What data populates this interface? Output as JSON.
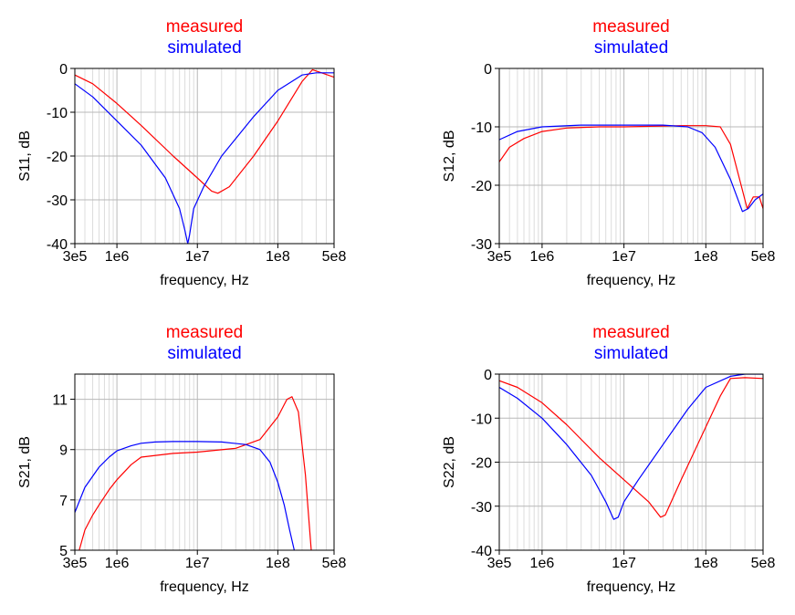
{
  "chart_data": [
    {
      "type": "line",
      "xscale": "log",
      "xlim": [
        300000,
        500000000
      ],
      "ylim": [
        -40,
        0
      ],
      "xticks": [
        300000,
        1000000,
        10000000,
        100000000,
        500000000
      ],
      "xtick_labels": [
        "3e5",
        "1e6",
        "1e7",
        "1e8",
        "5e8"
      ],
      "yticks": [
        -40,
        -30,
        -20,
        -10,
        0
      ],
      "ytick_labels": [
        "-40",
        "-30",
        "-20",
        "-10",
        "0"
      ],
      "xlabel": "frequency, Hz",
      "ylabel": "S11, dB",
      "grid": true,
      "legend": "top",
      "series": [
        {
          "name": "measured",
          "color": "#ff0000",
          "x": [
            300000,
            500000,
            1000000,
            2000000,
            5000000,
            10000000,
            15000000,
            18000000,
            25000000,
            50000000,
            100000000,
            200000000,
            270000000,
            350000000,
            500000000
          ],
          "y": [
            -1.5,
            -3.5,
            -8,
            -13,
            -20,
            -25,
            -28,
            -28.5,
            -27,
            -20,
            -12,
            -3,
            -0.3,
            -1,
            -2
          ]
        },
        {
          "name": "simulated",
          "color": "#0000ff",
          "x": [
            300000,
            500000,
            1000000,
            2000000,
            4000000,
            6000000,
            7000000,
            7600000,
            8000000,
            9000000,
            12000000,
            20000000,
            50000000,
            100000000,
            200000000,
            300000000,
            500000000
          ],
          "y": [
            -3.5,
            -6.5,
            -12,
            -17.5,
            -25,
            -32,
            -37,
            -40,
            -38,
            -32,
            -27,
            -20,
            -11,
            -5,
            -1.5,
            -1,
            -1
          ]
        }
      ]
    },
    {
      "type": "line",
      "xscale": "log",
      "xlim": [
        300000,
        500000000
      ],
      "ylim": [
        -30,
        0
      ],
      "xticks": [
        300000,
        1000000,
        10000000,
        100000000,
        500000000
      ],
      "xtick_labels": [
        "3e5",
        "1e6",
        "1e7",
        "1e8",
        "5e8"
      ],
      "yticks": [
        -30,
        -20,
        -10,
        0
      ],
      "ytick_labels": [
        "-30",
        "-20",
        "-10",
        "0"
      ],
      "xlabel": "frequency, Hz",
      "ylabel": "S12, dB",
      "grid": true,
      "legend": "top",
      "series": [
        {
          "name": "measured",
          "color": "#ff0000",
          "x": [
            300000,
            400000,
            600000,
            1000000,
            2000000,
            5000000,
            10000000,
            50000000,
            100000000,
            150000000,
            200000000,
            270000000,
            320000000,
            380000000,
            450000000,
            500000000
          ],
          "y": [
            -16,
            -13.5,
            -12,
            -10.8,
            -10.2,
            -10,
            -10,
            -9.8,
            -9.8,
            -10,
            -13,
            -20,
            -24,
            -22,
            -22,
            -24
          ]
        },
        {
          "name": "simulated",
          "color": "#0000ff",
          "x": [
            300000,
            500000,
            1000000,
            3000000,
            10000000,
            30000000,
            60000000,
            90000000,
            130000000,
            200000000,
            280000000,
            330000000,
            400000000,
            500000000
          ],
          "y": [
            -12.2,
            -10.8,
            -10,
            -9.7,
            -9.7,
            -9.7,
            -10,
            -11,
            -13.5,
            -19,
            -24.5,
            -24,
            -22.5,
            -21.5
          ]
        }
      ]
    },
    {
      "type": "line",
      "xscale": "log",
      "xlim": [
        300000,
        500000000
      ],
      "ylim": [
        5,
        12
      ],
      "xticks": [
        300000,
        1000000,
        10000000,
        100000000,
        500000000
      ],
      "xtick_labels": [
        "3e5",
        "1e6",
        "1e7",
        "1e8",
        "5e8"
      ],
      "yticks": [
        5,
        7,
        9,
        11
      ],
      "ytick_labels": [
        "5",
        "7",
        "9",
        "11"
      ],
      "xlabel": "frequency, Hz",
      "ylabel": "S21, dB",
      "grid": true,
      "legend": "top",
      "series": [
        {
          "name": "measured",
          "color": "#ff0000",
          "x": [
            340000,
            400000,
            500000,
            600000,
            800000,
            1000000,
            1500000,
            2000000,
            5000000,
            10000000,
            30000000,
            60000000,
            100000000,
            130000000,
            150000000,
            180000000,
            220000000,
            260000000
          ],
          "y": [
            5,
            5.8,
            6.4,
            6.8,
            7.4,
            7.8,
            8.4,
            8.7,
            8.85,
            8.9,
            9.05,
            9.4,
            10.3,
            11,
            11.1,
            10.5,
            8,
            5
          ]
        },
        {
          "name": "simulated",
          "color": "#0000ff",
          "x": [
            300000,
            400000,
            600000,
            800000,
            1000000,
            1500000,
            2000000,
            3000000,
            5000000,
            10000000,
            20000000,
            40000000,
            60000000,
            80000000,
            100000000,
            120000000,
            140000000,
            160000000
          ],
          "y": [
            6.5,
            7.5,
            8.3,
            8.7,
            8.95,
            9.15,
            9.25,
            9.3,
            9.32,
            9.32,
            9.3,
            9.2,
            9,
            8.5,
            7.7,
            6.8,
            5.8,
            5
          ]
        }
      ]
    },
    {
      "type": "line",
      "xscale": "log",
      "xlim": [
        300000,
        500000000
      ],
      "ylim": [
        -40,
        0
      ],
      "xticks": [
        300000,
        1000000,
        10000000,
        100000000,
        500000000
      ],
      "xtick_labels": [
        "3e5",
        "1e6",
        "1e7",
        "1e8",
        "5e8"
      ],
      "yticks": [
        -40,
        -30,
        -20,
        -10,
        0
      ],
      "ytick_labels": [
        "-40",
        "-30",
        "-20",
        "-10",
        "0"
      ],
      "xlabel": "frequency, Hz",
      "ylabel": "S22, dB",
      "grid": true,
      "legend": "top",
      "series": [
        {
          "name": "measured",
          "color": "#ff0000",
          "x": [
            300000,
            500000,
            1000000,
            2000000,
            5000000,
            10000000,
            20000000,
            28000000,
            32000000,
            50000000,
            100000000,
            150000000,
            200000000,
            300000000,
            500000000
          ],
          "y": [
            -1.5,
            -3,
            -6.5,
            -11.5,
            -19,
            -24,
            -29,
            -32.5,
            -32,
            -24,
            -12,
            -5,
            -1,
            -0.8,
            -1
          ]
        },
        {
          "name": "simulated",
          "color": "#0000ff",
          "x": [
            300000,
            500000,
            1000000,
            2000000,
            4000000,
            6000000,
            7500000,
            8500000,
            10000000,
            15000000,
            30000000,
            60000000,
            100000000,
            200000000,
            300000000,
            500000000
          ],
          "y": [
            -3,
            -5.5,
            -10,
            -16,
            -23,
            -29,
            -33,
            -32.5,
            -29,
            -24,
            -16,
            -8,
            -3,
            -0.5,
            0,
            0
          ]
        }
      ]
    }
  ]
}
